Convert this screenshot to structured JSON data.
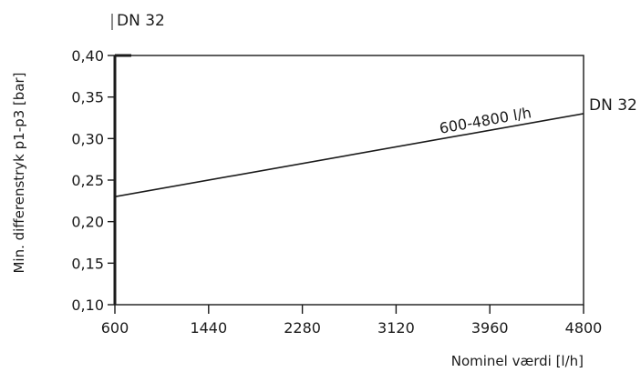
{
  "chart_data": {
    "type": "line",
    "title": "DN 32",
    "xlabel": "Nominel værdi [l/h]",
    "ylabel": "Min. differenstryk p1-p3 [bar]",
    "xlim": [
      600,
      4800
    ],
    "ylim": [
      0.1,
      0.4
    ],
    "x_ticks": [
      600,
      1440,
      2280,
      3120,
      3960,
      4800
    ],
    "y_ticks": [
      0.1,
      0.15,
      0.2,
      0.25,
      0.3,
      0.35,
      0.4
    ],
    "y_tick_labels": [
      "0,10",
      "0,15",
      "0,20",
      "0,25",
      "0,30",
      "0,35",
      "0,40"
    ],
    "x_tick_labels": [
      "600",
      "1440",
      "2280",
      "3120",
      "3960",
      "4800"
    ],
    "grid": false,
    "series": [
      {
        "name": "600-4800 l/h",
        "x": [
          600,
          4800
        ],
        "y": [
          0.23,
          0.33
        ]
      }
    ],
    "annotations": [
      {
        "text": "DN 32",
        "x": 4800,
        "y": 0.33
      }
    ]
  }
}
